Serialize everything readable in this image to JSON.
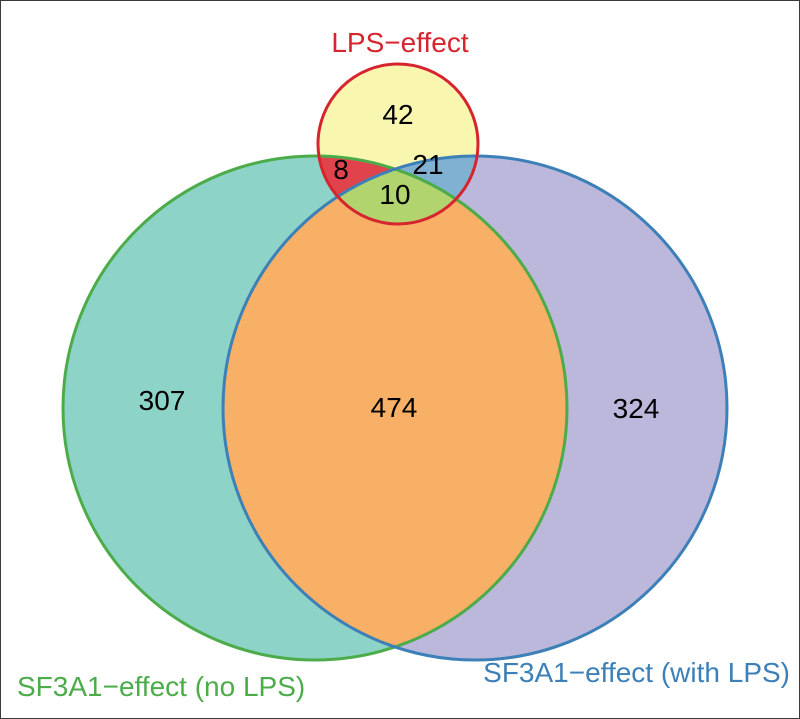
{
  "sets": [
    {
      "id": "lps",
      "label": "LPS−effect",
      "color": "#d7252f"
    },
    {
      "id": "nolps",
      "label": "SF3A1−effect (no LPS)",
      "color": "#4cac4a"
    },
    {
      "id": "withlps",
      "label": "SF3A1−effect (with LPS)",
      "color": "#3d80b8"
    }
  ],
  "regions": {
    "lps_only": "42",
    "nolps_only": "307",
    "withlps_only": "324",
    "nolps_withlps": "474",
    "lps_nolps": "8",
    "lps_withlps": "21",
    "all_three": "10"
  },
  "colors": {
    "lps_only": "#f9f6b0",
    "nolps_only": "#8dd3c7",
    "withlps_only": "#bcb8db",
    "nolps_withlps": "#f8b066",
    "lps_nolps": "#e0434b",
    "lps_withlps": "#80b1d3",
    "all_three": "#b2d46e"
  }
}
